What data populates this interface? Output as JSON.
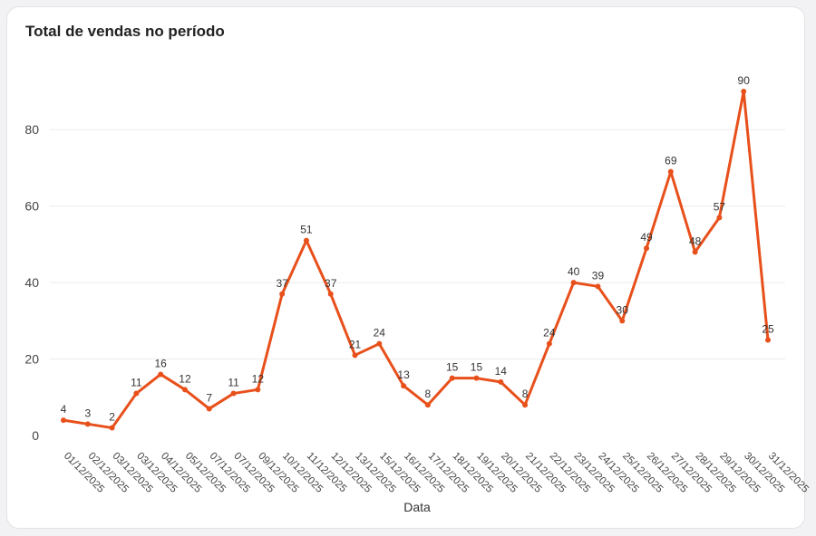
{
  "card": {
    "title": "Total de vendas no período"
  },
  "chart_data": {
    "type": "line",
    "title": "Total de vendas no período",
    "xlabel": "Data",
    "ylabel": "",
    "ylim": [
      0,
      90
    ],
    "yticks": [
      0,
      20,
      40,
      60,
      80
    ],
    "grid": true,
    "color": "#e8501b",
    "categories": [
      "01/12/2025",
      "02/12/2025",
      "03/12/2025",
      "03/12/2025",
      "04/12/2025",
      "05/12/2025",
      "07/12/2025",
      "07/12/2025",
      "09/12/2025",
      "10/12/2025",
      "11/12/2025",
      "12/12/2025",
      "13/12/2025",
      "15/12/2025",
      "16/12/2025",
      "17/12/2025",
      "18/12/2025",
      "19/12/2025",
      "20/12/2025",
      "21/12/2025",
      "22/12/2025",
      "23/12/2025",
      "24/12/2025",
      "25/12/2025",
      "26/12/2025",
      "27/12/2025",
      "28/12/2025",
      "29/12/2025",
      "30/12/2025",
      "31/12/2025"
    ],
    "values": [
      4,
      3,
      2,
      11,
      16,
      12,
      7,
      11,
      12,
      37,
      51,
      37,
      21,
      24,
      13,
      8,
      15,
      15,
      14,
      8,
      24,
      40,
      39,
      30,
      49,
      69,
      48,
      57,
      90,
      25
    ]
  }
}
